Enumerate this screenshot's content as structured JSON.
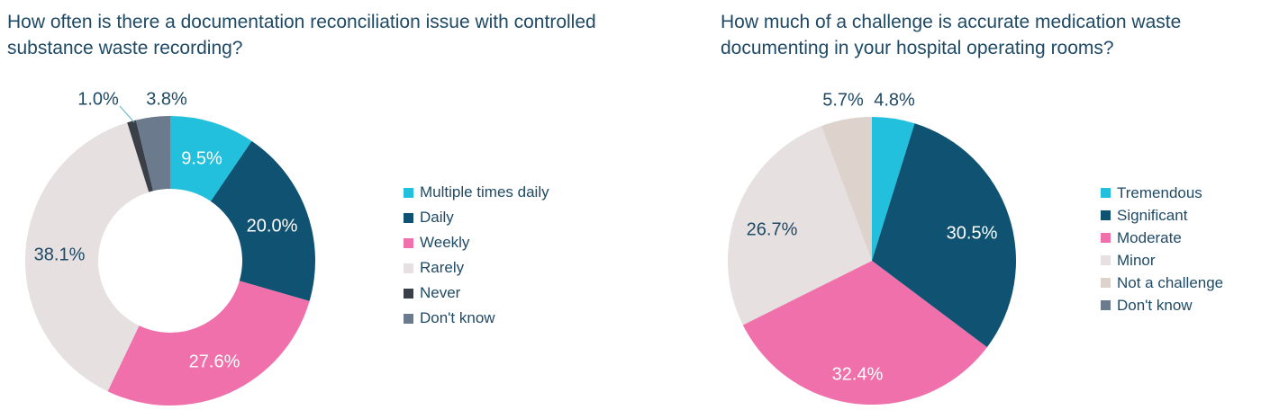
{
  "charts": [
    {
      "title": "How often is there a documentation reconciliation issue with controlled substance waste recording?"
    },
    {
      "title": "How much of a challenge is accurate medication waste documenting in your hospital operating rooms?"
    }
  ],
  "chart_data": [
    {
      "type": "pie",
      "variant": "donut",
      "title": "How often is there a documentation reconciliation issue with controlled substance waste recording?",
      "legend_position": "right",
      "slices": [
        {
          "label": "Multiple times daily",
          "value": 9.5,
          "display": "9.5%",
          "color": "#22c0dc"
        },
        {
          "label": "Daily",
          "value": 20.0,
          "display": "20.0%",
          "color": "#0f5272"
        },
        {
          "label": "Weekly",
          "value": 27.6,
          "display": "27.6%",
          "color": "#f070ab"
        },
        {
          "label": "Rarely",
          "value": 38.1,
          "display": "38.1%",
          "color": "#e6e0e0"
        },
        {
          "label": "Never",
          "value": 1.0,
          "display": "1.0%",
          "color": "#3a3f48"
        },
        {
          "label": "Don't know",
          "value": 3.8,
          "display": "3.8%",
          "color": "#6c7a8e"
        }
      ]
    },
    {
      "type": "pie",
      "title": "How much of a challenge is accurate medication waste documenting in your hospital operating rooms?",
      "legend_position": "right",
      "slices": [
        {
          "label": "Tremendous",
          "value": 4.8,
          "display": "4.8%",
          "color": "#22c0dc"
        },
        {
          "label": "Significant",
          "value": 30.5,
          "display": "30.5%",
          "color": "#0f5272"
        },
        {
          "label": "Moderate",
          "value": 32.4,
          "display": "32.4%",
          "color": "#f070ab"
        },
        {
          "label": "Minor",
          "value": 26.7,
          "display": "26.7%",
          "color": "#e6e0e0"
        },
        {
          "label": "Not a challenge",
          "value": 5.7,
          "display": "5.7%",
          "color": "#ddd3cc"
        },
        {
          "label": "Don't know",
          "value": 0,
          "display": "",
          "color": "#6c7a8e"
        }
      ]
    }
  ]
}
